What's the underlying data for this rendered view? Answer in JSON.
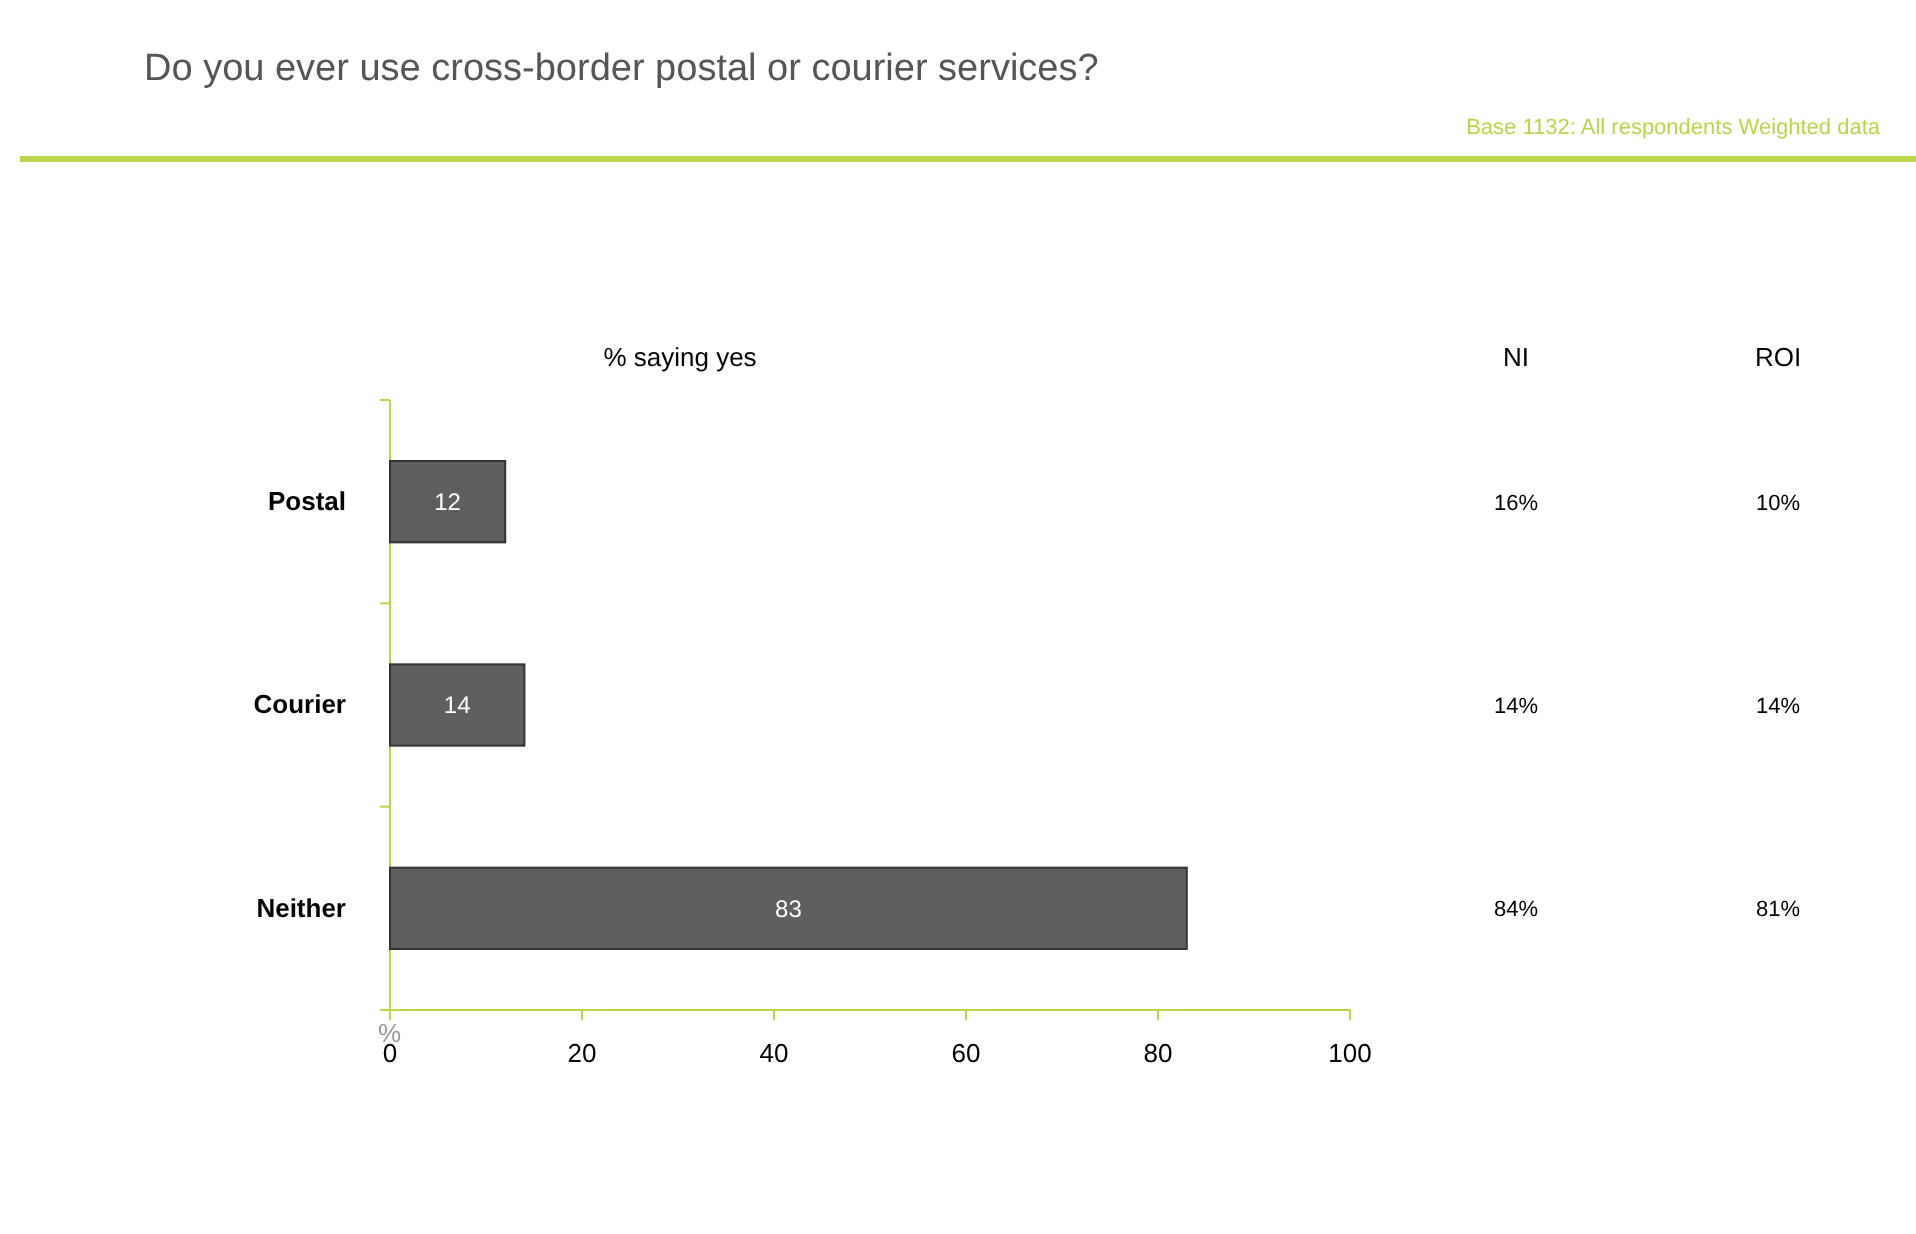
{
  "chart_data": {
    "type": "bar",
    "orientation": "horizontal",
    "title": "Do you ever use cross-border postal or courier services?",
    "subtitle": "Base 1132: All respondents Weighted data",
    "xlabel": "%",
    "categories": [
      "Postal",
      "Courier",
      "Neither"
    ],
    "values": [
      12,
      14,
      83
    ],
    "color": "#5f5f5f",
    "data_labels": true,
    "xlim": [
      0,
      100
    ],
    "xticks": [
      0,
      20,
      40,
      60,
      80,
      100
    ],
    "annotations": [
      "% saying yes",
      "NI",
      "ROI",
      "16%",
      "10%",
      "14%",
      "14%",
      "84%",
      "81%"
    ]
  }
}
